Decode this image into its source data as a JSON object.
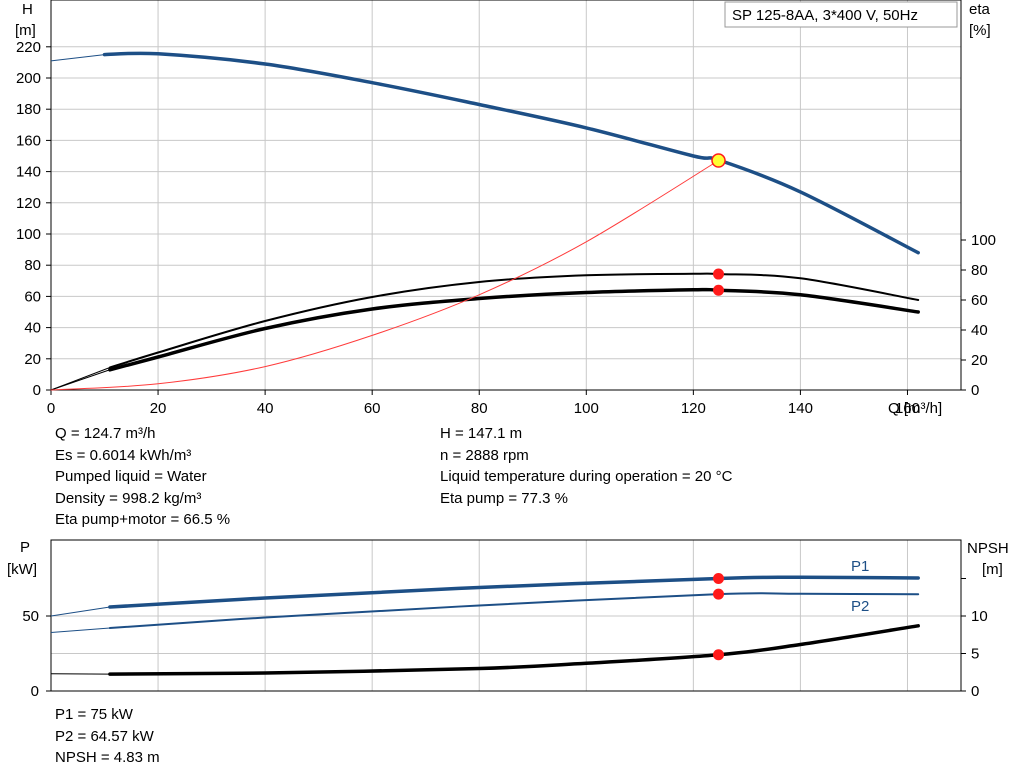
{
  "pump_chart": {
    "title_box": "SP 125-8AA, 3*400 V, 50Hz",
    "axes": {
      "left_label": "H",
      "left_unit": "[m]",
      "right_label": "eta",
      "right_unit": "[%]",
      "x_label": "Q [m³/h]"
    }
  },
  "power_chart": {
    "axes": {
      "left_label": "P",
      "left_unit": "[kW]",
      "right_label": "NPSH",
      "right_unit": "[m]"
    },
    "curve_labels": {
      "p1": "P1",
      "p2": "P2"
    }
  },
  "info_top_left": [
    "Q = 124.7 m³/h",
    "Es = 0.6014 kWh/m³",
    "Pumped liquid = Water",
    "Density = 998.2 kg/m³",
    "Eta pump+motor = 66.5 %"
  ],
  "info_top_right": [
    "H = 147.1 m",
    "n = 2888 rpm",
    "Liquid temperature during operation = 20 °C",
    "Eta pump = 77.3 %"
  ],
  "info_bottom": [
    "P1 = 75 kW",
    "P2 = 64.57 kW",
    "NPSH = 4.83 m"
  ],
  "colors": {
    "head_curve": "#1d4f86",
    "power_curve": "#1d4f86",
    "efficiency_curve": "#000000",
    "system_curve": "#ff3b3b",
    "duty_point": "#ff1a1a",
    "duty_point_head_fill": "#ffff33",
    "grid": "#c8c8c8"
  },
  "chart_data": [
    {
      "type": "line",
      "title": "SP 125-8AA, 3*400 V, 50Hz",
      "xlabel": "Q [m³/h]",
      "ylabel": "H [m]",
      "y2label": "eta [%]",
      "xlim": [
        0,
        170
      ],
      "ylim": [
        0,
        250
      ],
      "y2lim": [
        0,
        100
      ],
      "x_ticks": [
        0,
        20,
        40,
        60,
        80,
        100,
        120,
        140,
        160
      ],
      "y_ticks": [
        0,
        20,
        40,
        60,
        80,
        100,
        120,
        140,
        160,
        180,
        200,
        220
      ],
      "y2_ticks": [
        0,
        20,
        40,
        60,
        80,
        100
      ],
      "grid": true,
      "series": [
        {
          "id": "head",
          "axis": "left",
          "x": [
            0,
            10,
            20,
            40,
            60,
            80,
            100,
            120,
            125,
            140,
            162
          ],
          "y": [
            211,
            215,
            215.5,
            209,
            197,
            183,
            168,
            150,
            147.1,
            127,
            88
          ]
        },
        {
          "id": "efficiency_pump",
          "axis": "right",
          "x": [
            0,
            11,
            20,
            40,
            60,
            80,
            100,
            120,
            125,
            140,
            162
          ],
          "y": [
            0,
            15,
            25,
            46,
            62,
            72,
            76.5,
            77.5,
            77.3,
            74.5,
            60
          ]
        },
        {
          "id": "efficiency_total",
          "axis": "right",
          "x": [
            0,
            11,
            20,
            40,
            60,
            80,
            100,
            120,
            125,
            140,
            162
          ],
          "y": [
            0,
            13.5,
            22,
            41,
            54,
            61,
            65,
            66.8,
            66.5,
            63.5,
            52
          ]
        },
        {
          "id": "system",
          "axis": "left",
          "x": [
            0,
            20,
            40,
            60,
            80,
            100,
            124.7
          ],
          "y": [
            0,
            4,
            15,
            35,
            61,
            95,
            147.1
          ]
        }
      ],
      "duty_points": [
        {
          "x": 124.7,
          "y": 147.1,
          "axis": "left"
        },
        {
          "x": 124.7,
          "y": 77.3,
          "axis": "right"
        },
        {
          "x": 124.7,
          "y": 66.5,
          "axis": "right"
        }
      ]
    },
    {
      "type": "line",
      "xlabel": "Q [m³/h]",
      "ylabel": "P [kW]",
      "y2label": "NPSH [m]",
      "xlim": [
        0,
        170
      ],
      "ylim": [
        0,
        100
      ],
      "y2lim": [
        0,
        20
      ],
      "y_ticks": [
        0,
        50
      ],
      "y2_ticks": [
        0,
        5,
        10
      ],
      "grid": true,
      "series": [
        {
          "id": "P1",
          "name": "P1",
          "axis": "left",
          "x": [
            0,
            11,
            40,
            80,
            124.7,
            140,
            162
          ],
          "y": [
            50,
            56,
            62,
            69,
            75,
            75.8,
            75.3
          ]
        },
        {
          "id": "P2",
          "name": "P2",
          "axis": "left",
          "x": [
            0,
            11,
            40,
            80,
            124.7,
            140,
            162
          ],
          "y": [
            39,
            42,
            49,
            57,
            64.57,
            64.8,
            64.5
          ]
        },
        {
          "id": "NPSH",
          "axis": "right",
          "x": [
            0,
            11,
            40,
            80,
            100,
            124.7,
            140,
            162
          ],
          "y": [
            2.3,
            2.25,
            2.4,
            3.0,
            3.7,
            4.83,
            6.2,
            8.7
          ]
        }
      ],
      "duty_points": [
        {
          "x": 124.7,
          "y": 75,
          "axis": "left"
        },
        {
          "x": 124.7,
          "y": 64.57,
          "axis": "left"
        },
        {
          "x": 124.7,
          "y": 4.83,
          "axis": "right"
        }
      ]
    }
  ]
}
